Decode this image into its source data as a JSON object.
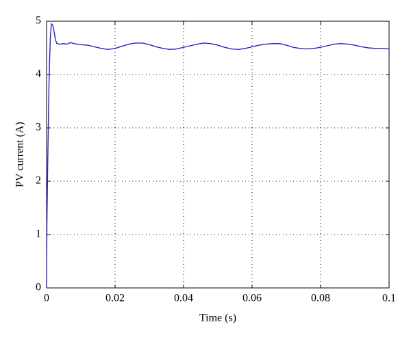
{
  "chart_data": {
    "type": "line",
    "xlabel": "Time (s)",
    "ylabel": "PV current (A)",
    "x": [
      0,
      0.0001,
      0.0003,
      0.0005,
      0.0007,
      0.0009,
      0.0011,
      0.0014,
      0.0018,
      0.0022,
      0.0026,
      0.003,
      0.004,
      0.005,
      0.006,
      0.007,
      0.008,
      0.01,
      0.012,
      0.014,
      0.016,
      0.018,
      0.02,
      0.022,
      0.024,
      0.026,
      0.028,
      0.03,
      0.032,
      0.034,
      0.036,
      0.038,
      0.04,
      0.042,
      0.044,
      0.046,
      0.048,
      0.05,
      0.052,
      0.054,
      0.056,
      0.058,
      0.06,
      0.062,
      0.064,
      0.066,
      0.068,
      0.07,
      0.072,
      0.074,
      0.076,
      0.078,
      0.08,
      0.082,
      0.084,
      0.086,
      0.088,
      0.09,
      0.092,
      0.094,
      0.096,
      0.098,
      0.1
    ],
    "series": [
      {
        "color": "#2323c8",
        "values": [
          0,
          1.2,
          2.2,
          3,
          3.8,
          4.3,
          4.7,
          4.95,
          4.93,
          4.8,
          4.65,
          4.58,
          4.57,
          4.58,
          4.57,
          4.6,
          4.58,
          4.56,
          4.55,
          4.52,
          4.49,
          4.47,
          4.49,
          4.53,
          4.57,
          4.59,
          4.59,
          4.56,
          4.52,
          4.49,
          4.47,
          4.48,
          4.51,
          4.54,
          4.57,
          4.59,
          4.58,
          4.55,
          4.51,
          4.48,
          4.47,
          4.49,
          4.52,
          4.55,
          4.57,
          4.58,
          4.58,
          4.55,
          4.51,
          4.49,
          4.48,
          4.49,
          4.51,
          4.54,
          4.57,
          4.58,
          4.57,
          4.55,
          4.52,
          4.5,
          4.49,
          4.49,
          4.48
        ]
      }
    ],
    "xlim": [
      0,
      0.1
    ],
    "xticks": [
      0,
      0.02,
      0.04,
      0.06,
      0.08,
      0.1
    ],
    "ylim": [
      0,
      5
    ],
    "yticks": [
      0,
      1,
      2,
      3,
      4,
      5
    ],
    "grid": true
  }
}
